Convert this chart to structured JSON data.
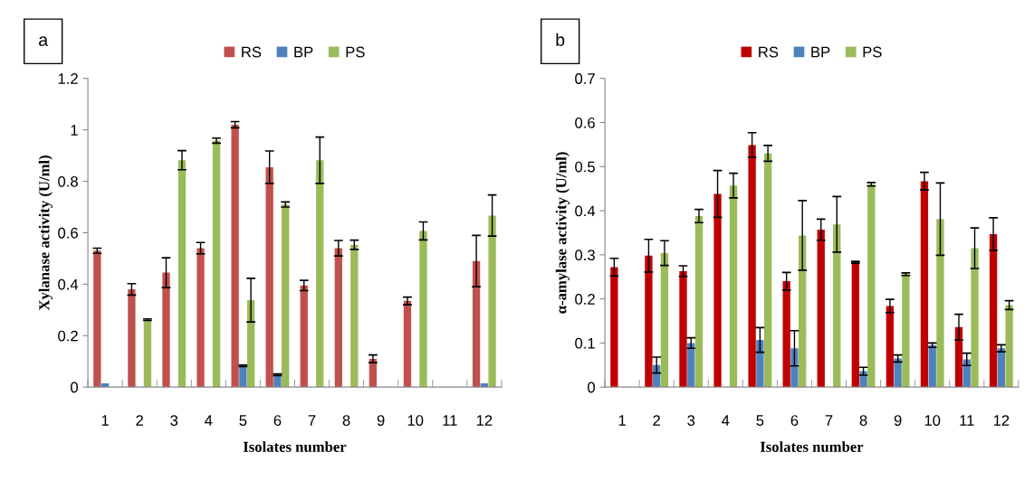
{
  "chart_data": [
    {
      "type": "bar",
      "annotations": [
        "a"
      ],
      "xlabel": "Isolates number",
      "ylabel": "Xylanase activity (U/ml)",
      "categories": [
        "1",
        "2",
        "3",
        "4",
        "5",
        "6",
        "7",
        "8",
        "9",
        "10",
        "11",
        "12"
      ],
      "series": [
        {
          "name": "RS",
          "color": "#c0504d",
          "values": [
            0.53,
            0.38,
            0.445,
            0.54,
            1.02,
            0.855,
            0.395,
            0.54,
            0.11,
            0.335,
            null,
            0.49
          ],
          "errors": [
            0.01,
            0.022,
            0.058,
            0.022,
            0.012,
            0.063,
            0.02,
            0.03,
            0.015,
            0.015,
            null,
            0.1
          ]
        },
        {
          "name": "BP",
          "color": "#4f81bd",
          "values": [
            0.015,
            null,
            null,
            null,
            0.083,
            0.048,
            null,
            null,
            null,
            null,
            null,
            0.015
          ],
          "errors": [
            null,
            null,
            null,
            null,
            0.003,
            0.003,
            null,
            null,
            null,
            null,
            null,
            null
          ]
        },
        {
          "name": "PS",
          "color": "#9bbb59",
          "values": [
            null,
            0.262,
            0.882,
            0.958,
            0.338,
            0.71,
            0.882,
            0.553,
            null,
            0.607,
            null,
            0.667
          ],
          "errors": [
            null,
            0.003,
            0.037,
            0.01,
            0.085,
            0.01,
            0.09,
            0.018,
            null,
            0.035,
            null,
            0.08
          ]
        }
      ],
      "ylim": [
        0,
        1.2
      ],
      "yticks": [
        0,
        0.2,
        0.4,
        0.6,
        0.8,
        1,
        1.2
      ],
      "grid": false,
      "legend": "top"
    },
    {
      "type": "bar",
      "annotations": [
        "b"
      ],
      "xlabel": "Isolates number",
      "ylabel": "α-amylase activity (U/ml)",
      "categories": [
        "1",
        "2",
        "3",
        "4",
        "5",
        "6",
        "7",
        "8",
        "9",
        "10",
        "11",
        "12"
      ],
      "series": [
        {
          "name": "RS",
          "color": "#c00000",
          "values": [
            0.272,
            0.298,
            0.263,
            0.438,
            0.549,
            0.24,
            0.357,
            0.283,
            0.184,
            0.467,
            0.136,
            0.347
          ],
          "errors": [
            0.02,
            0.037,
            0.012,
            0.053,
            0.028,
            0.02,
            0.024,
            0.002,
            0.015,
            0.02,
            0.029,
            0.037
          ]
        },
        {
          "name": "BP",
          "color": "#4f81bd",
          "values": [
            null,
            0.05,
            0.1,
            null,
            0.107,
            0.088,
            null,
            0.036,
            0.065,
            0.095,
            0.063,
            0.088
          ],
          "errors": [
            null,
            0.018,
            0.012,
            null,
            0.028,
            0.04,
            null,
            0.009,
            0.008,
            0.005,
            0.014,
            0.008
          ]
        },
        {
          "name": "PS",
          "color": "#9bbb59",
          "values": [
            null,
            0.304,
            0.388,
            0.457,
            0.53,
            0.344,
            0.369,
            0.46,
            0.256,
            0.381,
            0.315,
            0.186
          ],
          "errors": [
            null,
            0.028,
            0.015,
            0.028,
            0.018,
            0.079,
            0.063,
            0.004,
            0.003,
            0.082,
            0.046,
            0.01
          ]
        }
      ],
      "ylim": [
        0,
        0.7
      ],
      "yticks": [
        0,
        0.1,
        0.2,
        0.3,
        0.4,
        0.5,
        0.6,
        0.7
      ],
      "grid": false,
      "legend": "top"
    }
  ]
}
